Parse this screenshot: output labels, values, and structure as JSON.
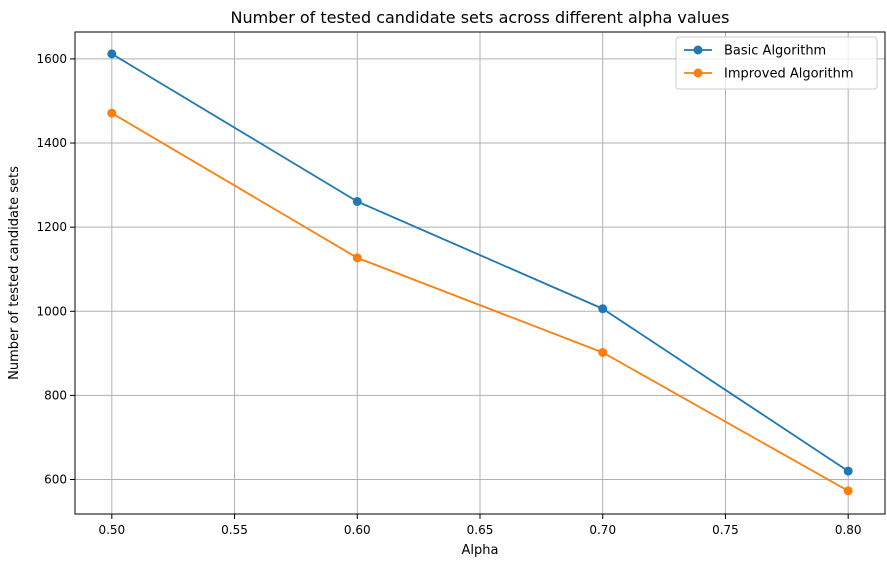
{
  "chart_data": {
    "type": "line",
    "title": "Number of tested candidate sets across different alpha values",
    "xlabel": "Alpha",
    "ylabel": "Number of tested candidate sets",
    "x": [
      0.5,
      0.6,
      0.7,
      0.8
    ],
    "xlim": [
      0.485,
      0.815
    ],
    "ylim": [
      518,
      1664
    ],
    "xticks": [
      0.5,
      0.55,
      0.6,
      0.65,
      0.7,
      0.75,
      0.8
    ],
    "xtick_labels": [
      "0.50",
      "0.55",
      "0.60",
      "0.65",
      "0.70",
      "0.75",
      "0.80"
    ],
    "yticks": [
      600,
      800,
      1000,
      1200,
      1400,
      1600
    ],
    "ytick_labels": [
      "600",
      "800",
      "1000",
      "1200",
      "1400",
      "1600"
    ],
    "grid": true,
    "legend_position": "top-right",
    "series": [
      {
        "name": "Basic Algorithm",
        "color": "#1f77b4",
        "values": [
          1612,
          1261,
          1006,
          620
        ]
      },
      {
        "name": "Improved Algorithm",
        "color": "#ff7f0e",
        "values": [
          1471,
          1127,
          902,
          573
        ]
      }
    ]
  }
}
